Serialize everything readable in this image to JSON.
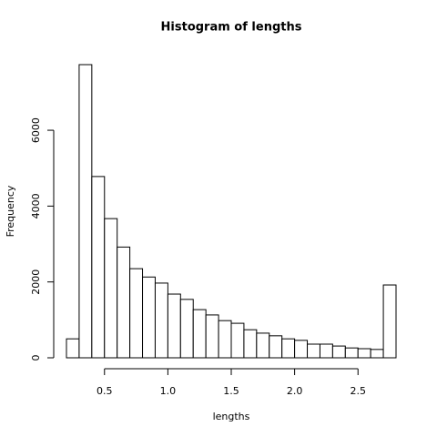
{
  "chart_data": {
    "type": "histogram",
    "title": "Histogram of lengths",
    "x_label": "lengths",
    "y_label": "Frequency",
    "bins": [
      0.2,
      0.3,
      0.4,
      0.5,
      0.6,
      0.7,
      0.8,
      0.9,
      1.0,
      1.1,
      1.2,
      1.3,
      1.4,
      1.5,
      1.6,
      1.7,
      1.8,
      1.9,
      2.0,
      2.1,
      2.2,
      2.3,
      2.4,
      2.5,
      2.6,
      2.7,
      2.8
    ],
    "values": [
      500,
      7730,
      4780,
      3670,
      2920,
      2350,
      2130,
      1970,
      1680,
      1540,
      1270,
      1130,
      980,
      910,
      740,
      650,
      580,
      500,
      460,
      360,
      360,
      310,
      260,
      240,
      220,
      1920
    ],
    "color": "#ffffff",
    "xlim": [
      0.2,
      2.8
    ],
    "ylim": [
      0,
      7730
    ],
    "xticks": [
      0.5,
      {
        "value": 1,
        "label": "1.0"
      },
      1.5,
      {
        "value": 2,
        "label": "2.0"
      },
      2.5
    ],
    "yticks": [
      0,
      2000,
      4000,
      6000
    ]
  }
}
